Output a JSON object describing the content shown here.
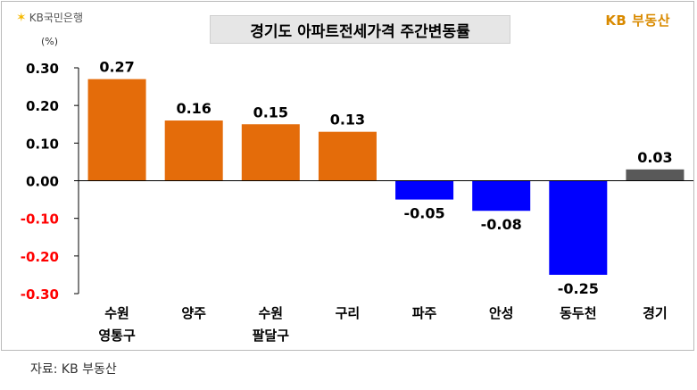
{
  "logo_left": "KB국민은행",
  "logo_right": "KB 부동산",
  "unit": "(%)",
  "source": "자료: KB 부동산",
  "colors": {
    "positive": "#e46c0a",
    "negative": "#0000ff",
    "total": "#595959",
    "axis_text": "#ff0000"
  },
  "chart_data": {
    "type": "bar",
    "title": "경기도 아파트전세가격 주간변동률",
    "ylabel": "(%)",
    "ylim": [
      -0.3,
      0.3
    ],
    "yticks": [
      "0.30",
      "0.20",
      "0.10",
      "0.00",
      "-0.10",
      "-0.20",
      "-0.30"
    ],
    "categories": [
      [
        "수원",
        "영통구"
      ],
      [
        "양주"
      ],
      [
        "수원",
        "팔달구"
      ],
      [
        "구리"
      ],
      [
        "파주"
      ],
      [
        "안성"
      ],
      [
        "동두천"
      ],
      [
        "경기"
      ]
    ],
    "values": [
      0.27,
      0.16,
      0.15,
      0.13,
      -0.05,
      -0.08,
      -0.25,
      0.03
    ],
    "value_labels": [
      "0.27",
      "0.16",
      "0.15",
      "0.13",
      "-0.05",
      "-0.08",
      "-0.25",
      "0.03"
    ],
    "bar_kinds": [
      "positive",
      "positive",
      "positive",
      "positive",
      "negative",
      "negative",
      "negative",
      "total"
    ]
  }
}
